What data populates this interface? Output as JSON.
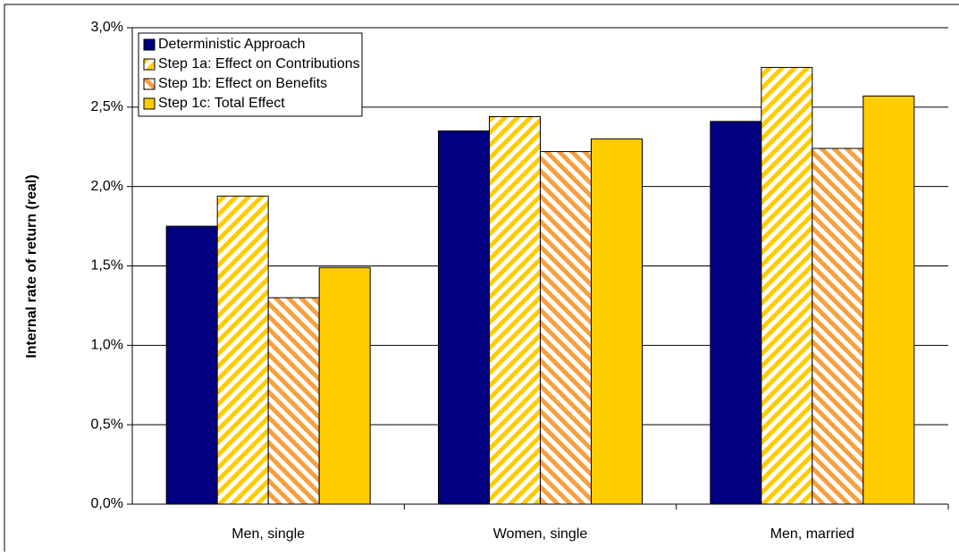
{
  "chart_data": {
    "type": "bar",
    "y_label": "Internal rate of return (real)",
    "categories": [
      "Men, single",
      "Women, single",
      "Men, married"
    ],
    "series": [
      {
        "name": "Deterministic Approach",
        "color": "#000080",
        "pattern": "solid",
        "values": [
          1.75,
          2.35,
          2.41
        ]
      },
      {
        "name": "Step 1a: Effect on Contributions",
        "color": "#FFCC00",
        "pattern": "stripes",
        "values": [
          1.94,
          2.44,
          2.75
        ]
      },
      {
        "name": "Step 1b: Effect on Benefits",
        "color": "#F7A040",
        "pattern": "stripes",
        "values": [
          1.3,
          2.22,
          2.24
        ]
      },
      {
        "name": "Step 1c: Total Effect",
        "color": "#FFCC00",
        "pattern": "solid",
        "values": [
          1.49,
          2.3,
          2.57
        ]
      }
    ],
    "ylim": [
      0,
      3
    ],
    "yticks": [
      {
        "value": 0,
        "label": "0,0%"
      },
      {
        "value": 0.5,
        "label": "0,5%"
      },
      {
        "value": 1,
        "label": "1,0%"
      },
      {
        "value": 1.5,
        "label": "1,5%"
      },
      {
        "value": 2,
        "label": "2,0%"
      },
      {
        "value": 2.5,
        "label": "2,5%"
      },
      {
        "value": 3,
        "label": "3,0%"
      }
    ],
    "grid": true,
    "legend": "upper-left"
  }
}
